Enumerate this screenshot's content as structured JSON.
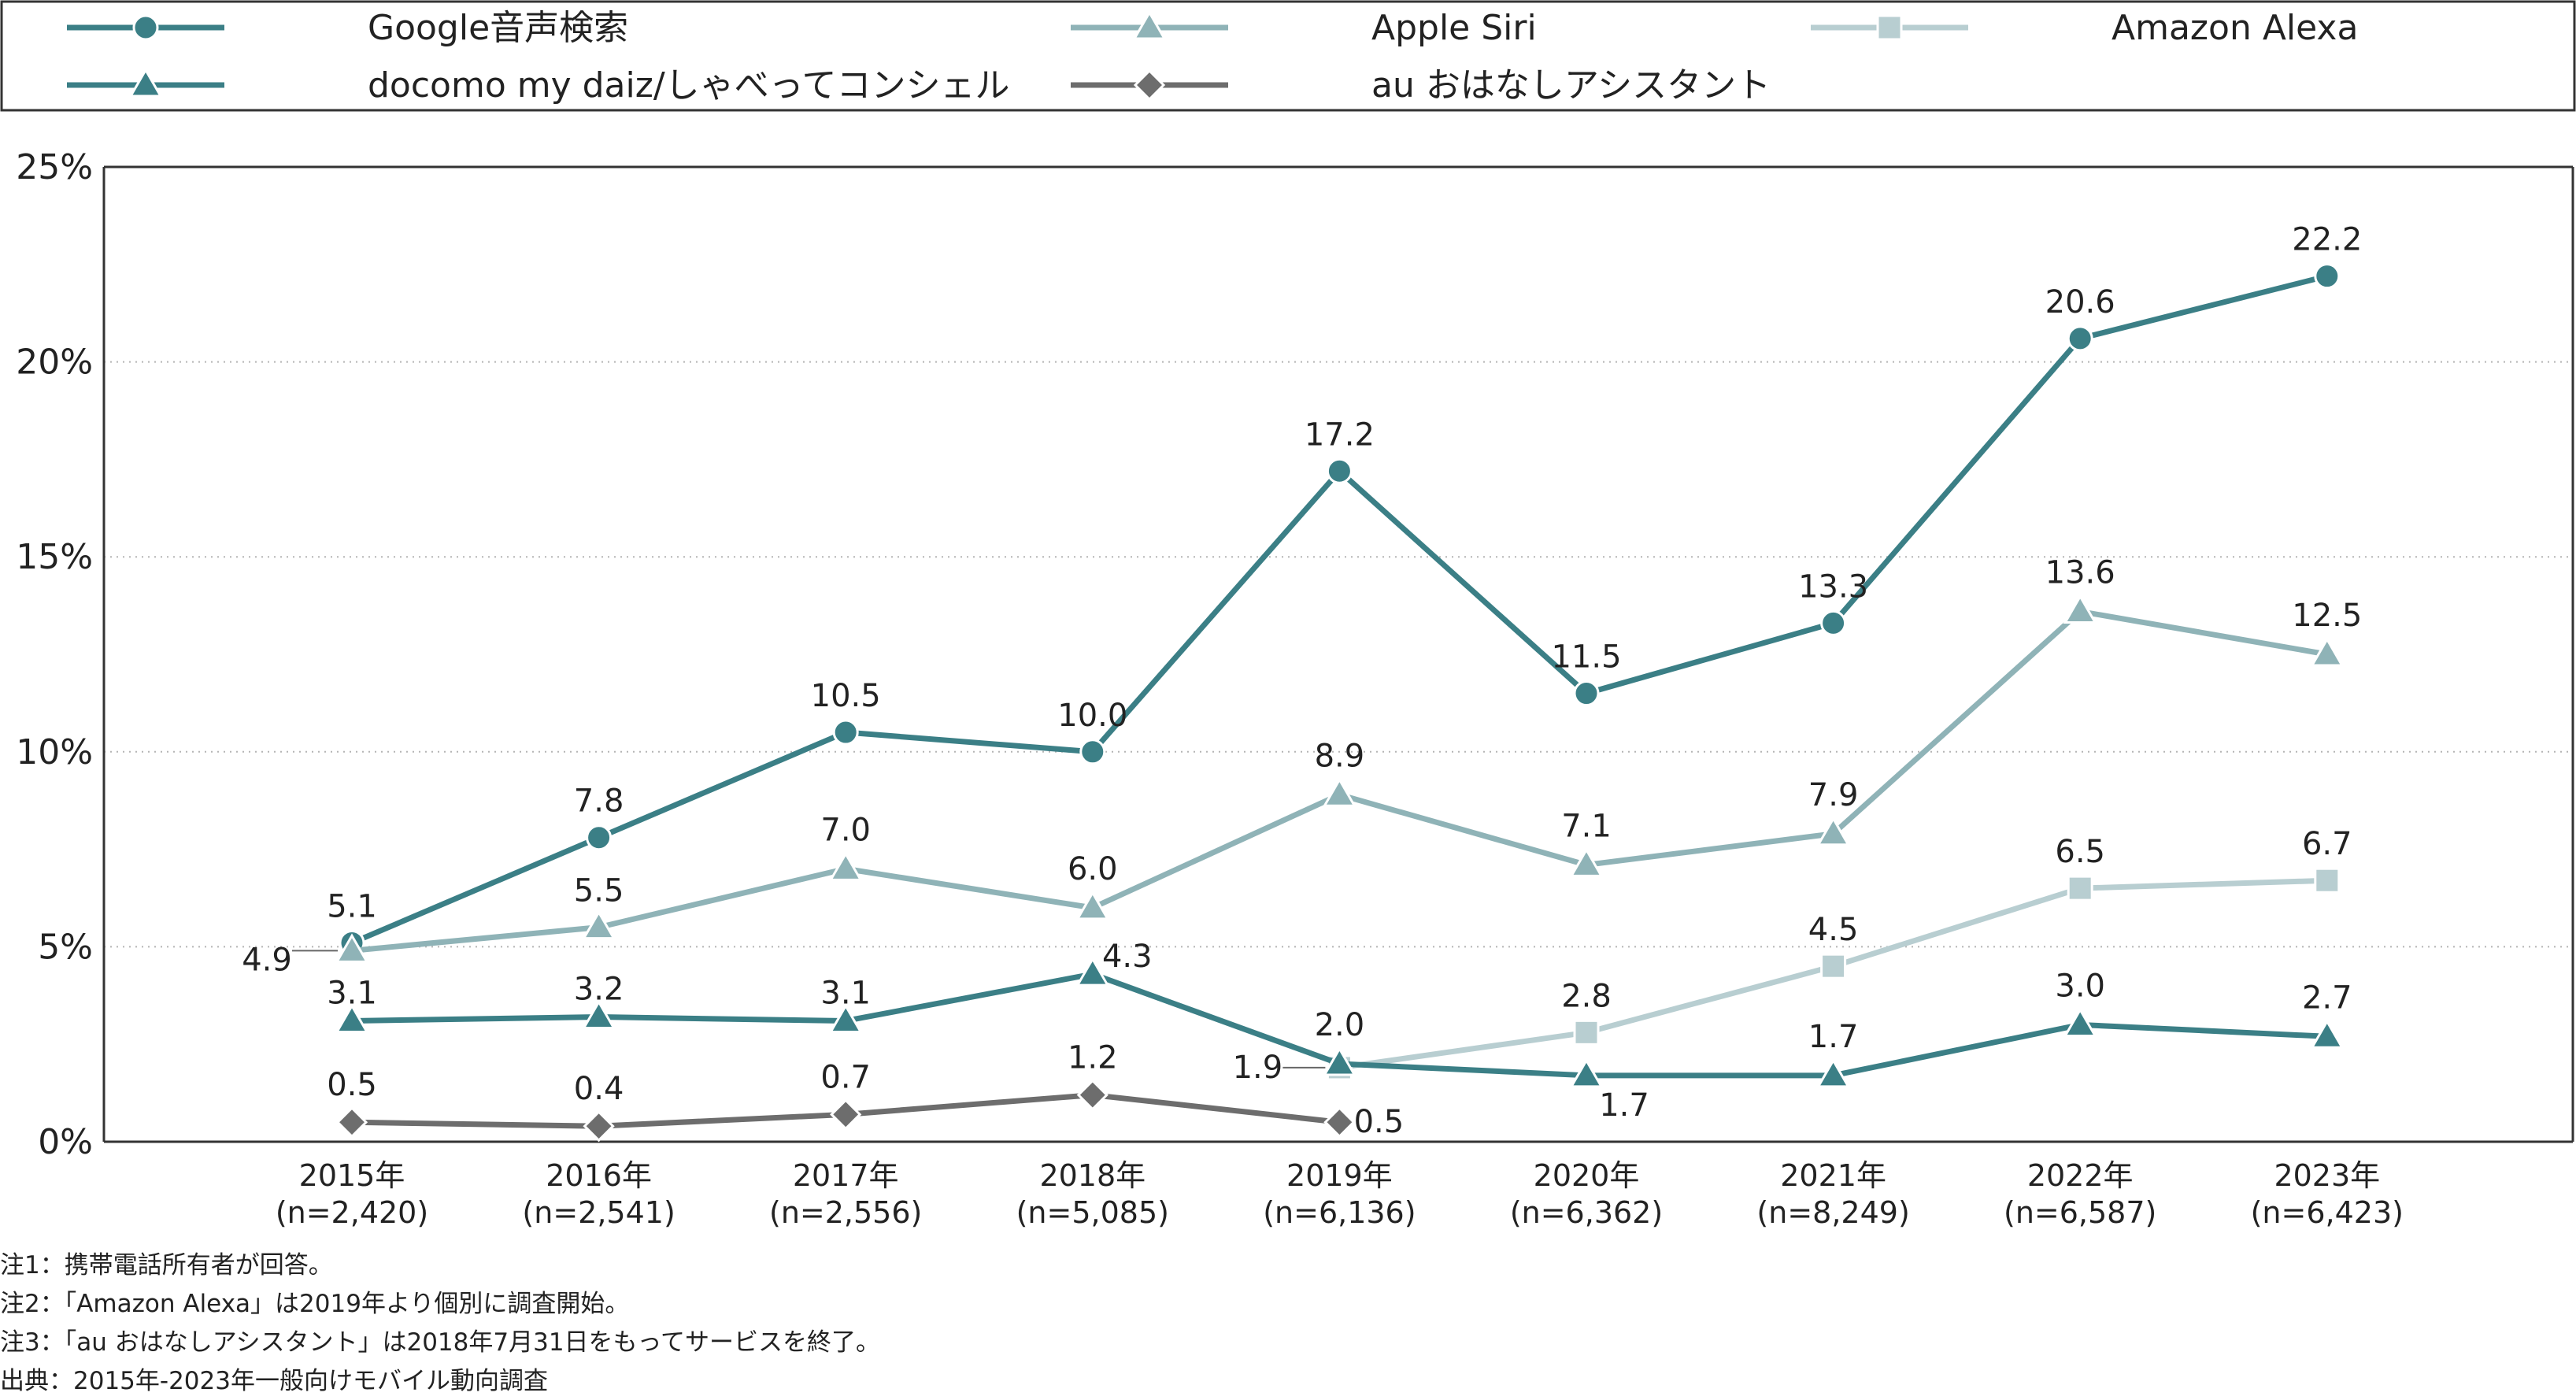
{
  "chart_data": {
    "type": "line",
    "ylim": [
      0,
      25
    ],
    "yticks": [
      "0%",
      "5%",
      "10%",
      "15%",
      "20%",
      "25%"
    ],
    "grid": "horizontal dotted",
    "legend_position": "top",
    "categories": [
      "2015年",
      "2016年",
      "2017年",
      "2018年",
      "2019年",
      "2020年",
      "2021年",
      "2022年",
      "2023年"
    ],
    "category_n": [
      "(n=2,420)",
      "(n=2,541)",
      "(n=2,556)",
      "(n=5,085)",
      "(n=6,136)",
      "(n=6,362)",
      "(n=8,249)",
      "(n=6,587)",
      "(n=6,423)"
    ],
    "series": [
      {
        "name": "Google音声検索",
        "marker": "circle",
        "color": "#3b7f86",
        "values": [
          5.1,
          7.8,
          10.5,
          10.0,
          17.2,
          11.5,
          13.3,
          20.6,
          22.2
        ],
        "labels": [
          "5.1",
          "7.8",
          "10.5",
          "10.0",
          "17.2",
          "11.5",
          "13.3",
          "20.6",
          "22.2"
        ]
      },
      {
        "name": "Apple Siri",
        "marker": "triangle",
        "color": "#8fb3b7",
        "values": [
          4.9,
          5.5,
          7.0,
          6.0,
          8.9,
          7.1,
          7.9,
          13.6,
          12.5
        ],
        "labels": [
          "4.9",
          "5.5",
          "7.0",
          "6.0",
          "8.9",
          "7.1",
          "7.9",
          "13.6",
          "12.5"
        ]
      },
      {
        "name": "Amazon Alexa",
        "marker": "square",
        "color": "#b8ced1",
        "values": [
          null,
          null,
          null,
          null,
          1.9,
          2.8,
          4.5,
          6.5,
          6.7
        ],
        "labels": [
          null,
          null,
          null,
          null,
          "1.9",
          "2.8",
          "4.5",
          "6.5",
          "6.7"
        ]
      },
      {
        "name": "docomo my daiz/しゃべってコンシェル",
        "marker": "triangle",
        "color": "#3b7f86",
        "values": [
          3.1,
          3.2,
          3.1,
          4.3,
          2.0,
          1.7,
          1.7,
          3.0,
          2.7
        ],
        "labels": [
          "3.1",
          "3.2",
          "3.1",
          "4.3",
          "2.0",
          "1.7",
          "1.7",
          "3.0",
          "2.7"
        ]
      },
      {
        "name": "au おはなしアシスタント",
        "marker": "diamond",
        "color": "#6d6d6d",
        "values": [
          0.5,
          0.4,
          0.7,
          1.2,
          0.5,
          null,
          null,
          null,
          null
        ],
        "labels": [
          "0.5",
          "0.4",
          "0.7",
          "1.2",
          "0.5",
          null,
          null,
          null,
          null
        ]
      }
    ]
  },
  "notes": [
    "注1：携帯電話所有者が回答。",
    "注2：「Amazon Alexa」は2019年より個別に調査開始。",
    "注3：「au おはなしアシスタント」は2018年7月31日をもってサービスを終了。",
    "出典：2015年-2023年一般向けモバイル動向調査"
  ]
}
